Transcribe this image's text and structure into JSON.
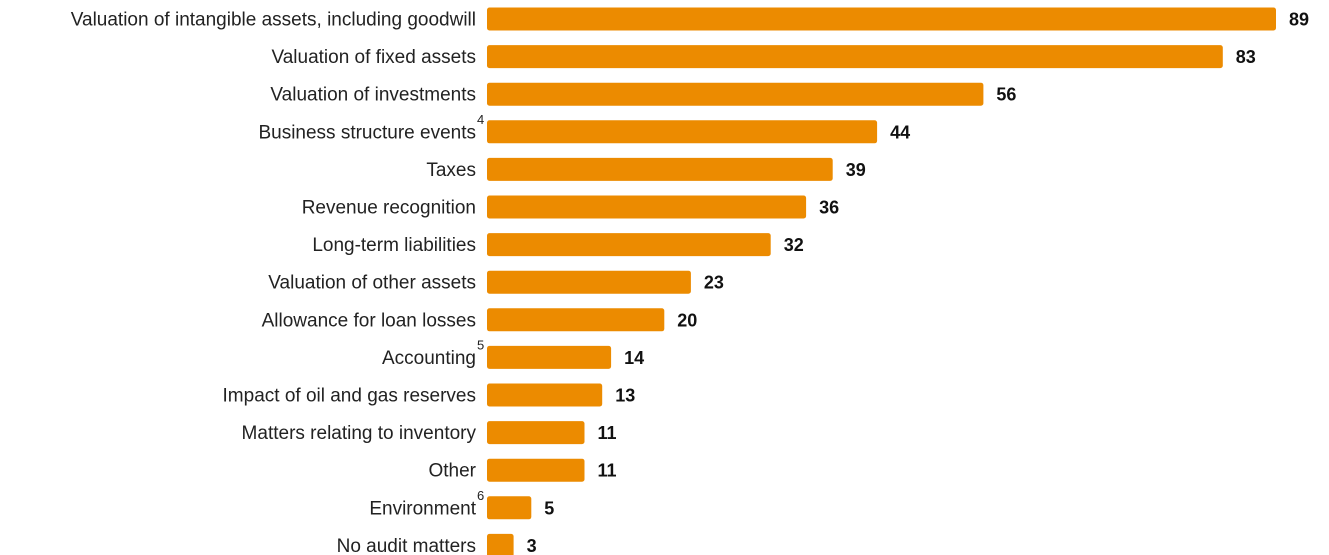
{
  "chart_data": {
    "type": "bar",
    "orientation": "horizontal",
    "bar_color": "#EC8B00",
    "categories": [
      "Valuation of intangible assets, including goodwill",
      "Valuation of fixed assets",
      "Valuation of investments",
      "Business structure events",
      "Taxes",
      "Revenue recognition",
      "Long-term liabilities",
      "Valuation of other assets",
      "Allowance for loan losses",
      "Accounting",
      "Impact of oil and gas reserves",
      "Matters relating to inventory",
      "Other",
      "Environment",
      "No audit matters"
    ],
    "footnotes": [
      "",
      "",
      "",
      "4",
      "",
      "",
      "",
      "",
      "",
      "5",
      "",
      "",
      "",
      "6",
      ""
    ],
    "values": [
      89,
      83,
      56,
      44,
      39,
      36,
      32,
      23,
      20,
      14,
      13,
      11,
      11,
      5,
      3
    ],
    "data_labels": [
      "89",
      "83",
      "56",
      "44",
      "39",
      "36",
      "32",
      "23",
      "20",
      "14",
      "13",
      "11",
      "11",
      "5",
      "3"
    ],
    "xlim": [
      0,
      89
    ],
    "grid": false,
    "legend": "none"
  }
}
